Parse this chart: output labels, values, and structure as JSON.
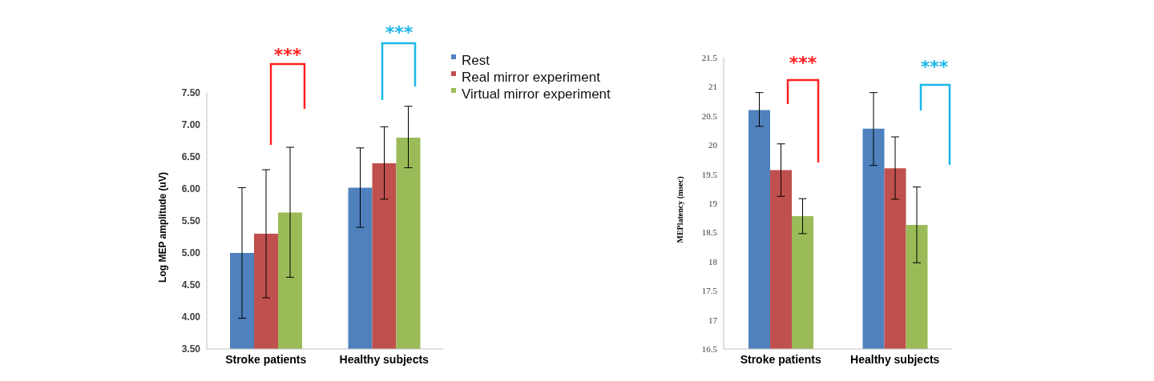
{
  "chart_data": [
    {
      "type": "bar",
      "ylabel": "Log MEP amplitude (uV)",
      "categories": [
        "Stroke patients",
        "Healthy subjects"
      ],
      "series": [
        {
          "name": "Rest",
          "color": "#4f81bd",
          "values": [
            5.0,
            6.02
          ],
          "errors": [
            [
              3.98,
              6.02
            ],
            [
              5.4,
              6.64
            ]
          ]
        },
        {
          "name": "Real mirror experiment",
          "color": "#c0504d",
          "values": [
            5.3,
            6.4
          ],
          "errors": [
            [
              4.3,
              6.3
            ],
            [
              5.84,
              6.97
            ]
          ]
        },
        {
          "name": "Virtual mirror experiment",
          "color": "#9bbb59",
          "values": [
            5.63,
            6.8
          ],
          "errors": [
            [
              4.62,
              6.65
            ],
            [
              6.33,
              7.29
            ]
          ]
        }
      ],
      "ylim": [
        3.5,
        7.5
      ],
      "yticks": [
        {
          "value": 3.5,
          "label": "3.50"
        },
        {
          "value": 4,
          "label": "4.00"
        },
        {
          "value": 4.5,
          "label": "4.50"
        },
        {
          "value": 5,
          "label": "5.00"
        },
        {
          "value": 5.5,
          "label": "5.50"
        },
        {
          "value": 6,
          "label": "6.00"
        },
        {
          "value": 6.5,
          "label": "6.50"
        },
        {
          "value": 7,
          "label": "7.00"
        },
        {
          "value": 7.5,
          "label": "7.50"
        }
      ],
      "legend": "top right",
      "annotations": [
        "***",
        "***"
      ]
    },
    {
      "type": "bar",
      "ylabel": "MEPlatency (msec)",
      "categories": [
        "Stroke patients",
        "Healthy subjects"
      ],
      "series": [
        {
          "color": "#4f81bd",
          "values": [
            20.6,
            20.28
          ],
          "errors": [
            [
              20.32,
              20.9
            ],
            [
              19.65,
              20.9
            ]
          ]
        },
        {
          "color": "#c0504d",
          "values": [
            19.57,
            19.6
          ],
          "errors": [
            [
              19.12,
              20.02
            ],
            [
              19.07,
              20.14
            ]
          ]
        },
        {
          "color": "#9bbb59",
          "values": [
            18.78,
            18.63
          ],
          "errors": [
            [
              18.48,
              19.08
            ],
            [
              17.98,
              19.28
            ]
          ]
        }
      ],
      "ylim": [
        16.5,
        21.5
      ],
      "yticks": [
        16.5,
        17,
        17.5,
        18,
        18.5,
        19,
        19.5,
        20,
        20.5,
        21,
        21.5
      ],
      "annotations": [
        "***",
        "***"
      ]
    }
  ]
}
